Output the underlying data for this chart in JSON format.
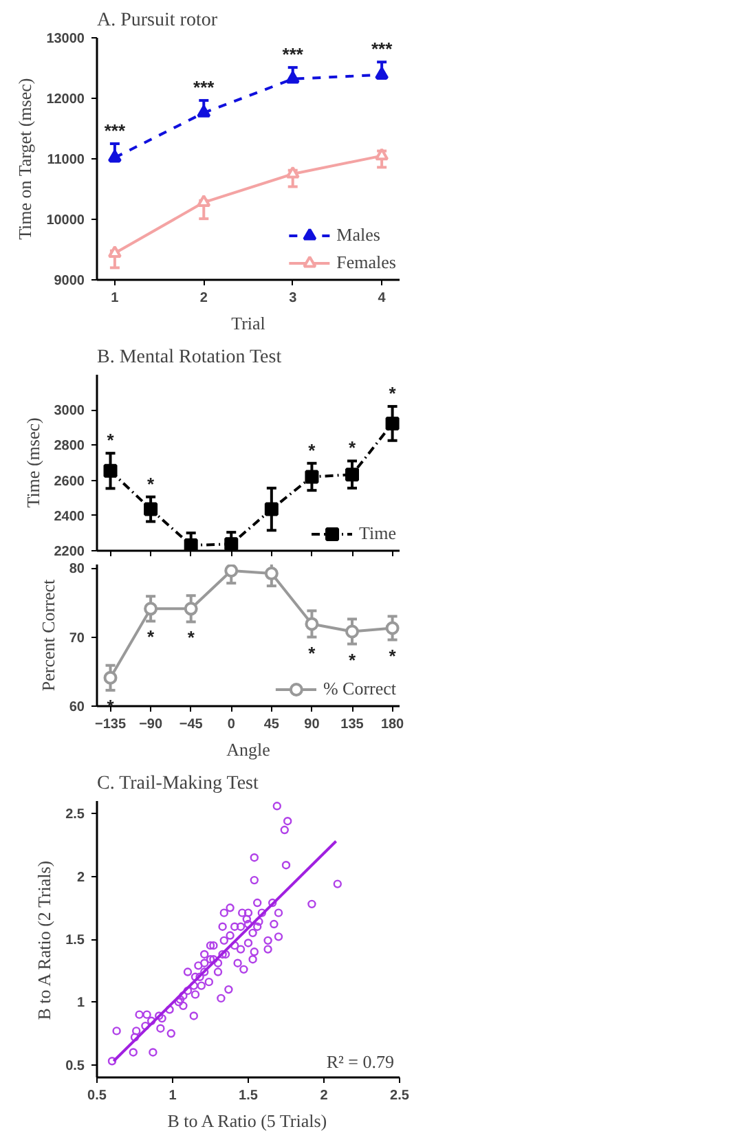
{
  "chart_data": [
    {
      "type": "line",
      "title": "A. Pursuit rotor",
      "xlabel": "Trial",
      "ylabel": "Time on Target (msec)",
      "x": [
        1,
        2,
        3,
        4
      ],
      "xlim": [
        0.8,
        4.2
      ],
      "xticks": [
        1,
        2,
        3,
        4
      ],
      "ylim": [
        9000,
        13000
      ],
      "yticks": [
        9000,
        10000,
        11000,
        12000,
        13000
      ],
      "legend": "bottom right",
      "marker": "triangle",
      "series": [
        {
          "name": "Males",
          "color": "#1010dd",
          "line_style": "dashed",
          "values": [
            11020,
            11760,
            12320,
            12390
          ],
          "errors": [
            [
              10960,
              11250
            ],
            [
              11720,
              11965
            ],
            [
              12270,
              12510
            ],
            [
              12330,
              12600
            ]
          ]
        },
        {
          "name": "Females",
          "color": "#f4a3a3",
          "line_style": "solid",
          "values": [
            9440,
            10280,
            10750,
            11050
          ],
          "errors": [
            [
              9200,
              9480
            ],
            [
              10010,
              10310
            ],
            [
              10540,
              10810
            ],
            [
              10860,
              11130
            ]
          ]
        }
      ],
      "annotations": [
        {
          "text": "***",
          "x": 1,
          "y": 11250
        },
        {
          "text": "***",
          "x": 2,
          "y": 11965
        },
        {
          "text": "***",
          "x": 3,
          "y": 12510
        },
        {
          "text": "***",
          "x": 4,
          "y": 12600
        }
      ]
    },
    {
      "type": "line",
      "title": "B. Mental Rotation Test",
      "ylabel": "Time (msec)",
      "x": [
        -135,
        -90,
        -45,
        0,
        45,
        90,
        135,
        180
      ],
      "xlim": [
        -150,
        188
      ],
      "xticks": [
        -135,
        -90,
        -45,
        0,
        45,
        90,
        135,
        180
      ],
      "ylim": [
        2200,
        3200
      ],
      "yticks": [
        2200,
        2400,
        2600,
        2800,
        3000
      ],
      "tick_labels": "y",
      "legend": "bottom right",
      "marker": "square",
      "line_style": "dotted",
      "series": [
        {
          "name": "Time",
          "color": "#000000",
          "values": [
            2654,
            2436,
            2231,
            2238,
            2436,
            2620,
            2633,
            2923
          ],
          "errors": [
            100,
            70,
            70,
            67,
            120,
            77,
            77,
            97
          ]
        }
      ],
      "annotations": [
        {
          "text": "*",
          "x": -135,
          "y": 2754
        },
        {
          "text": "*",
          "x": -90,
          "y": 2506
        },
        {
          "text": "*",
          "x": 90,
          "y": 2697
        },
        {
          "text": "*",
          "x": 135,
          "y": 2710
        },
        {
          "text": "*",
          "x": 180,
          "y": 3020
        }
      ]
    },
    {
      "type": "line",
      "xlabel": "Angle",
      "ylabel": "Percent Correct",
      "x": [
        -135,
        -90,
        -45,
        0,
        45,
        90,
        135,
        180
      ],
      "xlim": [
        -150,
        188
      ],
      "xticks": [
        -135,
        -90,
        -45,
        0,
        45,
        90,
        135,
        180
      ],
      "ylim": [
        60,
        80.5
      ],
      "yticks": [
        60,
        70,
        80
      ],
      "legend": "bottom right",
      "marker": "circle",
      "line_style": "solid",
      "series": [
        {
          "name": "% Correct",
          "color": "#999999",
          "values": [
            64.1,
            74.1,
            74.1,
            79.6,
            79.2,
            71.9,
            70.8,
            71.3
          ],
          "errors": [
            1.8,
            1.8,
            1.9,
            1.8,
            1.8,
            1.9,
            1.8,
            1.7
          ]
        }
      ],
      "annotations": [
        {
          "text": "*",
          "x": -135,
          "y": 62.3
        },
        {
          "text": "*",
          "x": -90,
          "y": 72.3
        },
        {
          "text": "*",
          "x": -45,
          "y": 72.2
        },
        {
          "text": "*",
          "x": 90,
          "y": 70.0
        },
        {
          "text": "*",
          "x": 135,
          "y": 69.0
        },
        {
          "text": "*",
          "x": 180,
          "y": 69.6
        }
      ]
    },
    {
      "type": "scatter",
      "title": "C. Trail-Making Test",
      "xlabel": "B to A Ratio (5 Trials)",
      "ylabel": "B to A Ratio (2 Trials)",
      "xlim": [
        0.5,
        2.5
      ],
      "xticks": [
        0.5,
        1.0,
        1.5,
        2.0,
        2.5
      ],
      "ylim": [
        0.4,
        2.6
      ],
      "yticks": [
        0.5,
        1.0,
        1.5,
        2.0,
        2.5
      ],
      "series": [
        {
          "color": "#b040e8",
          "marker": "circle",
          "x": [
            0.6,
            0.63,
            0.74,
            0.78,
            0.76,
            0.83,
            0.87,
            0.91,
            0.92,
            0.93,
            0.99,
            1.05,
            1.07,
            1.1,
            1.14,
            1.15,
            1.17,
            1.18,
            1.21,
            1.24,
            1.25,
            1.27,
            1.3,
            1.32,
            1.33,
            1.34,
            1.35,
            1.37,
            1.38,
            1.41,
            1.43,
            1.46,
            1.47,
            1.49,
            1.5,
            1.53,
            1.53,
            1.54,
            1.56,
            1.57,
            1.54,
            1.54,
            1.63,
            1.66,
            1.67,
            1.69,
            1.7,
            1.7,
            1.74,
            1.76,
            1.75,
            1.92,
            2.09,
            1.21,
            1.15,
            1.19,
            1.27,
            1.33,
            1.25,
            1.3,
            1.14,
            1.1,
            1.04,
            1.38,
            1.45,
            1.5,
            1.59,
            1.45,
            1.41,
            1.34,
            1.5,
            1.56,
            1.63,
            1.21,
            0.86,
            0.82,
            0.75,
            0.98,
            1.07
          ],
          "values": [
            0.53,
            0.77,
            0.6,
            0.9,
            0.77,
            0.9,
            0.6,
            0.89,
            0.79,
            0.87,
            0.75,
            1.02,
            0.97,
            1.24,
            0.89,
            1.06,
            1.29,
            1.2,
            1.24,
            1.16,
            1.34,
            1.45,
            1.31,
            1.03,
            1.6,
            1.71,
            1.38,
            1.1,
            1.75,
            1.45,
            1.31,
            1.71,
            1.26,
            1.66,
            1.47,
            1.55,
            1.34,
            1.4,
            1.79,
            1.64,
            1.97,
            2.15,
            1.42,
            1.79,
            1.62,
            2.56,
            1.52,
            1.71,
            2.37,
            2.44,
            2.09,
            1.78,
            1.94,
            1.31,
            1.2,
            1.13,
            1.34,
            1.38,
            1.45,
            1.24,
            1.13,
            1.09,
            1.0,
            1.53,
            1.6,
            1.62,
            1.71,
            1.42,
            1.6,
            1.49,
            1.71,
            1.6,
            1.49,
            1.38,
            0.85,
            0.81,
            0.72,
            0.94,
            1.05
          ]
        },
        {
          "type": "line",
          "color": "#a020e0",
          "x": [
            0.61,
            2.08
          ],
          "values": [
            0.53,
            2.28
          ]
        }
      ],
      "annotations": [
        "R² = 0.79"
      ]
    }
  ]
}
